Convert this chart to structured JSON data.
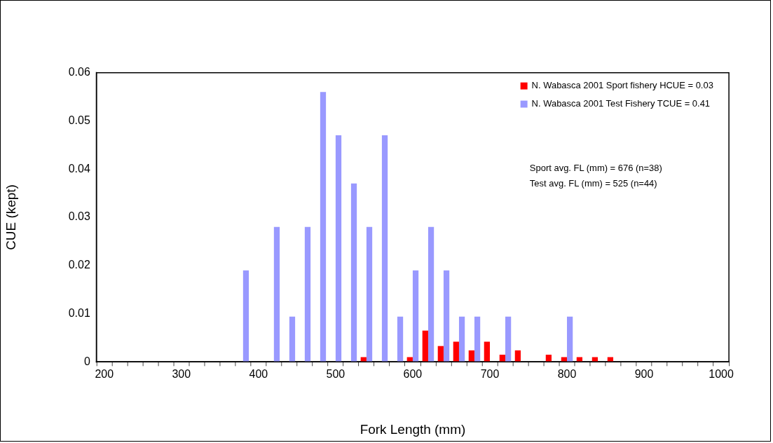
{
  "chart_data": {
    "type": "bar",
    "xlabel": "Fork Length (mm)",
    "ylabel": "CUE (kept)",
    "categories": [
      "200",
      null,
      null,
      null,
      null,
      "300",
      null,
      null,
      null,
      null,
      "400",
      null,
      null,
      null,
      null,
      "500",
      null,
      null,
      null,
      null,
      "600",
      null,
      null,
      null,
      null,
      "700",
      null,
      null,
      null,
      null,
      "800",
      null,
      null,
      null,
      null,
      "900",
      null,
      null,
      null,
      null,
      "1000"
    ],
    "series": [
      {
        "name": "N. Wabasca 2001 Sport fishery HCUE = 0.03",
        "color": "#ff0000",
        "values": [
          null,
          null,
          null,
          null,
          null,
          null,
          null,
          null,
          null,
          null,
          null,
          null,
          null,
          null,
          null,
          null,
          null,
          0.001,
          null,
          null,
          0.001,
          0.0065,
          0.0033,
          0.0042,
          0.0024,
          0.0042,
          0.0015,
          0.0024,
          null,
          0.0015,
          0.001,
          0.001,
          0.001,
          0.001,
          null,
          null,
          null,
          null,
          null,
          null,
          null
        ]
      },
      {
        "name": "N. Wabasca 2001 Test Fishery TCUE = 0.41",
        "color": "#9999ff",
        "values": [
          null,
          null,
          null,
          null,
          null,
          null,
          null,
          null,
          null,
          0.019,
          null,
          0.028,
          0.0094,
          0.028,
          0.056,
          0.047,
          0.037,
          0.028,
          0.047,
          0.0094,
          0.019,
          0.028,
          0.019,
          0.0094,
          0.0094,
          null,
          0.0094,
          null,
          null,
          null,
          0.0094,
          null,
          null,
          null,
          null,
          null,
          null,
          null,
          null,
          null,
          null
        ]
      }
    ],
    "ylim": [
      0,
      0.06
    ],
    "yticks": [
      0,
      0.01,
      0.02,
      0.03,
      0.04,
      0.05,
      0.06
    ],
    "legend": "top right",
    "annotations": [
      "Sport avg. FL (mm) = 676 (n=38)",
      "Test avg. FL (mm) = 525 (n=44)"
    ]
  }
}
